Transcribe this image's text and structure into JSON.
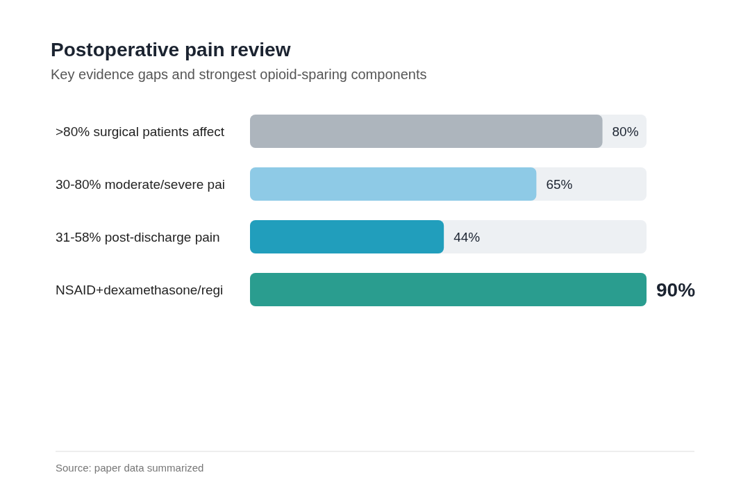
{
  "chart_data": {
    "type": "bar",
    "orientation": "horizontal",
    "title": "Postoperative pain review",
    "subtitle": "Key evidence gaps and strongest opioid-sparing components",
    "categories": [
      ">80% surgical patients affect",
      "30-80% moderate/severe pai",
      "31-58% post-discharge pain",
      "NSAID+dexamethasone/regi"
    ],
    "values": [
      80,
      65,
      44,
      90
    ],
    "colors": [
      "#adb5bd",
      "#8ecae6",
      "#219ebc",
      "#2a9d8f"
    ],
    "value_labels": [
      "80%",
      "65%",
      "44%",
      "90%"
    ],
    "annotations": [
      "Source: paper data summarized"
    ]
  }
}
